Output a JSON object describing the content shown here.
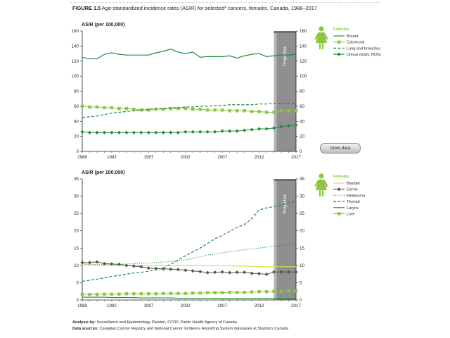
{
  "figure": {
    "label": "FIGURE 1.5",
    "title": "Age-standardized incidence rates (ASIR) for selected* cancers, females, Canada, 1988–2017"
  },
  "view_data_button": "View data",
  "footer": {
    "analysis_label": "Analysis by:",
    "analysis_text": "Surveillance and Epidemiology Division, CCDP, Public Health Agency of Canada",
    "sources_label": "Data sources:",
    "sources_text": "Canadian Cancer Registry and National Cancer Incidence Reporting System databases at Statistics Canada"
  },
  "colors": {
    "dark_green": "#1f8c3b",
    "light_green": "#8dc63f",
    "yellow_green": "#d6e04a",
    "gray_series": "#555555",
    "projected_fill": "#8c8c8c",
    "axis": "#231f20"
  },
  "chart_data": [
    {
      "type": "line",
      "ylabel": "ASIR (per 100,000)",
      "ylim": [
        0,
        160
      ],
      "yticks": [
        0,
        20,
        40,
        60,
        80,
        100,
        120,
        140,
        160
      ],
      "xlim": [
        1988,
        2017
      ],
      "xticks": [
        1988,
        1992,
        1997,
        2002,
        2007,
        2012,
        2017
      ],
      "projected_label": "Projected",
      "projected_range": [
        2014,
        2017
      ],
      "legend_title": "Females",
      "legend_icon": "female-figure-icon",
      "legend_position": "right",
      "x": [
        1988,
        1989,
        1990,
        1991,
        1992,
        1993,
        1994,
        1995,
        1996,
        1997,
        1998,
        1999,
        2000,
        2001,
        2002,
        2003,
        2004,
        2005,
        2006,
        2007,
        2008,
        2009,
        2010,
        2011,
        2012,
        2013,
        2014,
        2015,
        2016,
        2017
      ],
      "series": [
        {
          "name": "Breast",
          "color": "#1f8c3b",
          "style": "solid",
          "marker": "none",
          "values": [
            125,
            123,
            123,
            129,
            131,
            129,
            128,
            128,
            128,
            128,
            131,
            133,
            136,
            132,
            130,
            132,
            125,
            126,
            126,
            126,
            127,
            124,
            127,
            129,
            130,
            126,
            127,
            128,
            128,
            129
          ]
        },
        {
          "name": "Colorectal",
          "color": "#8dc63f",
          "style": "solid",
          "marker": "square",
          "values": [
            60,
            59,
            59,
            58,
            58,
            57,
            57,
            56,
            55,
            55,
            56,
            56,
            57,
            57,
            57,
            56,
            56,
            55,
            55,
            55,
            54,
            54,
            54,
            53,
            53,
            52,
            52,
            54,
            54,
            54
          ]
        },
        {
          "name": "Lung and bronchus",
          "color": "#1f8c3b",
          "style": "dashed",
          "marker": "none",
          "values": [
            45,
            46,
            47,
            49,
            51,
            52,
            53,
            54,
            55,
            56,
            57,
            57,
            58,
            58,
            59,
            59,
            60,
            60,
            61,
            61,
            62,
            62,
            62,
            62,
            63,
            63,
            64,
            64,
            64,
            64
          ]
        },
        {
          "name": "Uterus (body, NOS)",
          "color": "#1f8c3b",
          "style": "solid",
          "marker": "diamond",
          "values": [
            26,
            25,
            25,
            25,
            25,
            25,
            25,
            25,
            25,
            25,
            25,
            25,
            25,
            25,
            26,
            26,
            26,
            26,
            26,
            27,
            27,
            27,
            28,
            29,
            30,
            30,
            31,
            33,
            34,
            35
          ]
        }
      ]
    },
    {
      "type": "line",
      "ylabel": "ASIR (per 100,000)",
      "ylim": [
        0,
        35
      ],
      "yticks": [
        0,
        5,
        10,
        15,
        20,
        25,
        30,
        35
      ],
      "xlim": [
        1988,
        2017
      ],
      "xticks": [
        1988,
        1992,
        1997,
        2002,
        2007,
        2012,
        2017
      ],
      "projected_label": "Projected",
      "projected_range": [
        2014,
        2017
      ],
      "legend_title": "Females",
      "legend_icon": "female-figure-icon",
      "legend_position": "right",
      "x": [
        1988,
        1989,
        1990,
        1991,
        1992,
        1993,
        1994,
        1995,
        1996,
        1997,
        1998,
        1999,
        2000,
        2001,
        2002,
        2003,
        2004,
        2005,
        2006,
        2007,
        2008,
        2009,
        2010,
        2011,
        2012,
        2013,
        2014,
        2015,
        2016,
        2017
      ],
      "series": [
        {
          "name": "Bladder",
          "color": "#d6e04a",
          "style": "solid",
          "marker": "none",
          "values": [
            10.2,
            10.1,
            10.1,
            10.2,
            10.1,
            10.1,
            10.0,
            10.0,
            10.0,
            10.0,
            10.0,
            10.0,
            10.0,
            10.0,
            10.0,
            10.0,
            9.9,
            9.9,
            9.9,
            9.9,
            9.9,
            9.8,
            9.8,
            9.7,
            9.7,
            9.6,
            9.6,
            9.6,
            9.6,
            9.6
          ]
        },
        {
          "name": "Cervix",
          "color": "#555555",
          "style": "solid",
          "marker": "diamond",
          "values": [
            10.8,
            10.8,
            11.0,
            10.5,
            10.4,
            10.3,
            10.0,
            9.8,
            9.6,
            9.2,
            9.1,
            9.0,
            8.9,
            8.8,
            8.6,
            8.4,
            8.2,
            7.9,
            8.0,
            8.1,
            7.9,
            8.0,
            8.0,
            7.7,
            7.6,
            7.4,
            8.1,
            8.1,
            8.1,
            8.1
          ]
        },
        {
          "name": "Melanoma",
          "color": "#1f8c3b",
          "style": "dotted",
          "marker": "none",
          "values": [
            10.5,
            10.3,
            10.2,
            10.1,
            10.2,
            10.3,
            10.4,
            10.5,
            10.6,
            10.7,
            10.8,
            11.0,
            11.1,
            11.3,
            11.6,
            12.0,
            12.5,
            13.0,
            13.3,
            13.6,
            14.0,
            14.2,
            14.5,
            14.8,
            15.0,
            15.3,
            15.5,
            15.8,
            16.0,
            16.2
          ]
        },
        {
          "name": "Thyroid",
          "color": "#1f8c3b",
          "style": "dashed",
          "marker": "none",
          "values": [
            5.4,
            5.7,
            6.0,
            6.4,
            6.8,
            7.1,
            7.5,
            7.8,
            8.0,
            8.3,
            8.7,
            9.2,
            10.3,
            11.5,
            12.8,
            13.9,
            15.0,
            16.3,
            17.7,
            18.7,
            19.8,
            21.0,
            21.8,
            23.5,
            26.0,
            26.6,
            27.0,
            27.5,
            28.0,
            28.6
          ]
        },
        {
          "name": "Larynx",
          "color": "#1f8c3b",
          "style": "solid",
          "marker": "none",
          "values": [
            0.8,
            0.8,
            0.8,
            0.8,
            0.7,
            0.7,
            0.7,
            0.7,
            0.6,
            0.6,
            0.6,
            0.6,
            0.6,
            0.5,
            0.5,
            0.5,
            0.5,
            0.5,
            0.5,
            0.4,
            0.4,
            0.4,
            0.4,
            0.4,
            0.4,
            0.4,
            0.4,
            0.4,
            0.4,
            0.4
          ]
        },
        {
          "name": "Liver",
          "color": "#8dc63f",
          "style": "solid",
          "marker": "square",
          "values": [
            1.6,
            1.6,
            1.6,
            1.7,
            1.7,
            1.7,
            1.8,
            1.8,
            1.8,
            1.8,
            1.8,
            1.9,
            1.9,
            1.9,
            1.9,
            2.0,
            2.0,
            2.1,
            2.1,
            2.1,
            2.2,
            2.2,
            2.2,
            2.3,
            2.4,
            2.4,
            2.5,
            2.5,
            2.6,
            2.6
          ]
        }
      ]
    }
  ]
}
